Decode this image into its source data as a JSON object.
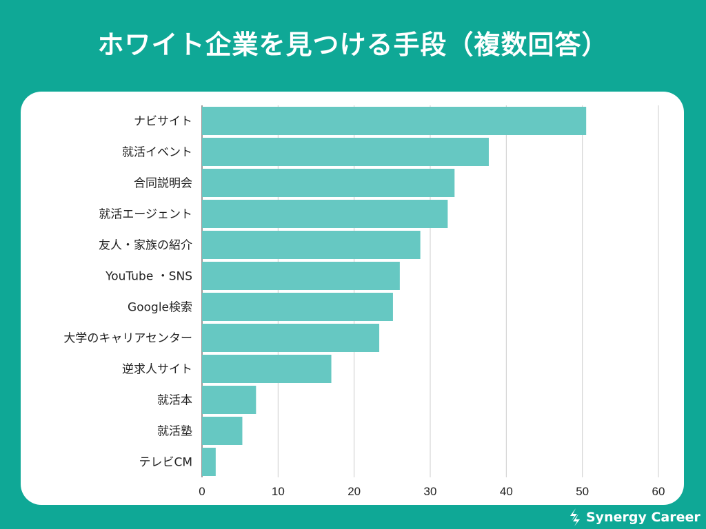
{
  "title": "ホワイト企業を見つける手段（複数回答）",
  "brand": {
    "name": "Synergy Career",
    "icon": "synergy-logo-icon"
  },
  "colors": {
    "background": "#0fa896",
    "bar": "#66c8c2",
    "grid": "#cccccc",
    "text": "#222222"
  },
  "chart_data": {
    "type": "bar",
    "orientation": "horizontal",
    "title": "ホワイト企業を見つける手段（複数回答）",
    "xlabel": "",
    "ylabel": "",
    "categories": [
      "ナビサイト",
      "就活イベント",
      "合同説明会",
      "就活エージェント",
      "友人・家族の紹介",
      "YouTube ・SNS",
      "Google検索",
      "大学のキャリアセンター",
      "逆求人サイト",
      "就活本",
      "就活塾",
      "テレビCM"
    ],
    "values": [
      50.5,
      37.7,
      33.2,
      32.3,
      28.7,
      26,
      25.1,
      23.3,
      17,
      7.1,
      5.3,
      1.8
    ],
    "xlim": [
      0,
      60
    ],
    "xticks": [
      0,
      10,
      20,
      30,
      40,
      50,
      60
    ],
    "grid": true,
    "legend": "none"
  }
}
